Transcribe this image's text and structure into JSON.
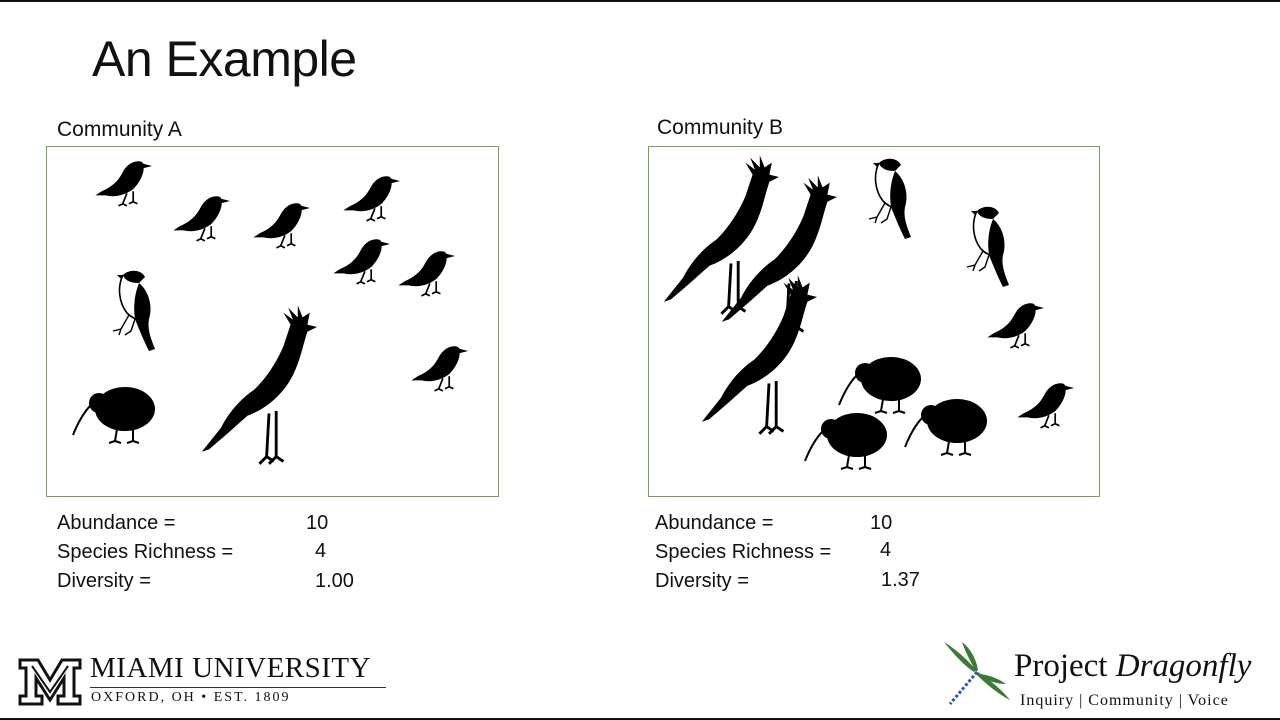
{
  "slide": {
    "title": "An Example"
  },
  "community_a": {
    "label": "Community A",
    "abundance_label": "Abundance =",
    "abundance_value": "10",
    "richness_label": "Species Richness =",
    "richness_value": "4",
    "diversity_label": "Diversity =",
    "diversity_value": "1.00"
  },
  "community_b": {
    "label": "Community B",
    "abundance_label": "Abundance =",
    "abundance_value": "10",
    "richness_label": "Species Richness =",
    "richness_value": "4",
    "diversity_label": "Diversity =",
    "diversity_value": "1.37"
  },
  "footer": {
    "miami_name": "MIAMI UNIVERSITY",
    "miami_sub": "OXFORD, OH  •  EST. 1809",
    "pd_name_plain": "Project ",
    "pd_name_italic": "Dragonfly",
    "pd_tagline": "Inquiry | Community | Voice"
  },
  "colors": {
    "panel_border": "#7a9e5e",
    "silhouette": "#000000",
    "dragonfly_wing": "#3d7a3a",
    "dragonfly_body": "#2a5aa8"
  },
  "icons": [
    "songbird-icon",
    "secretary-bird-icon",
    "kiwi-icon",
    "chickadee-icon",
    "miami-m-logo",
    "dragonfly-logo"
  ]
}
